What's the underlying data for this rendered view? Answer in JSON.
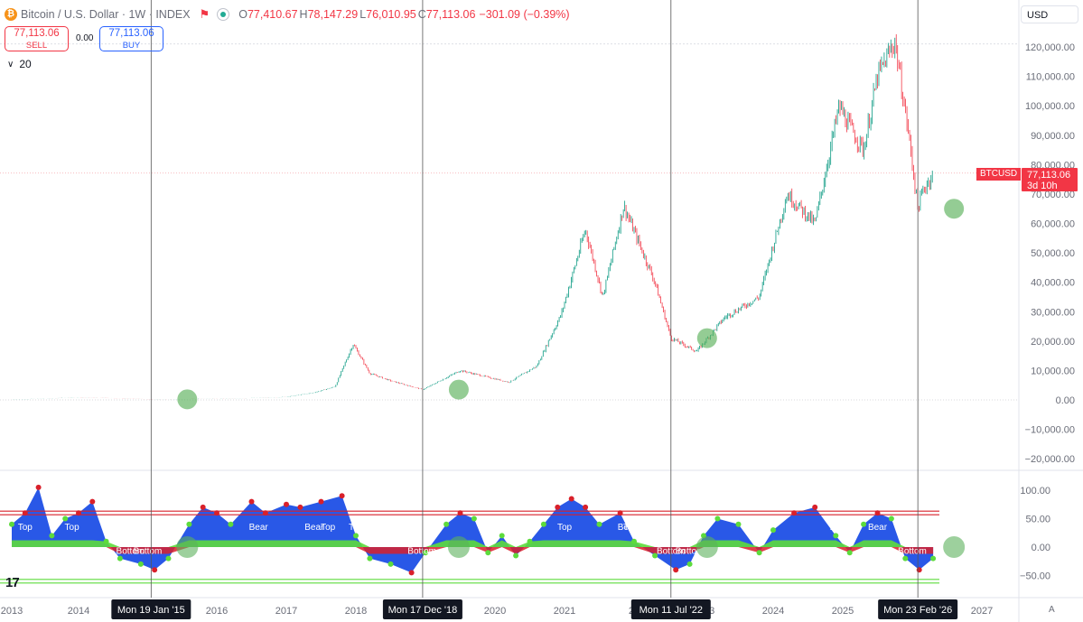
{
  "header": {
    "symbol_title": "Bitcoin / U.S. Dollar · 1W · INDEX",
    "open_key": "O",
    "open": "77,410.67",
    "high_key": "H",
    "high": "78,147.29",
    "low_key": "L",
    "low": "76,010.95",
    "close_key": "C",
    "close": "77,113.06",
    "change": "−301.09 (−0.39%)"
  },
  "trade": {
    "sell_price": "77,113.06",
    "sell_label": "SELL",
    "spread": "0.00",
    "buy_price": "77,113.06",
    "buy_label": "BUY"
  },
  "indicator_row": {
    "value": "20"
  },
  "currency": "USD",
  "last_price": {
    "symbol": "BTCUSD",
    "price": "77,113.06",
    "countdown": "3d 10h"
  },
  "colors": {
    "up": "#089981",
    "down": "#f23645",
    "osc_blue": "#1e4fe6",
    "osc_green": "#5ddb3c",
    "osc_red": "#d9202a",
    "marker": "#5bb05b"
  },
  "chart_data": [
    {
      "type": "candlestick",
      "series": [
        {
          "name": "BTCUSD",
          "x": [
            2013.0,
            2013.5,
            2014.0,
            2014.5,
            2015.05,
            2015.5,
            2016.0,
            2016.5,
            2017.0,
            2017.4,
            2017.7,
            2017.96,
            2018.2,
            2018.5,
            2018.96,
            2019.5,
            2020.2,
            2020.6,
            2020.95,
            2021.3,
            2021.55,
            2021.85,
            2022.3,
            2022.53,
            2022.9,
            2023.3,
            2023.8,
            2024.2,
            2024.6,
            2024.95,
            2025.05,
            2025.3,
            2025.5,
            2025.75,
            2025.95,
            2026.08,
            2026.15,
            2026.3
          ],
          "y": [
            100,
            500,
            800,
            600,
            200,
            280,
            430,
            650,
            1000,
            2500,
            4500,
            19000,
            9000,
            6500,
            3500,
            10000,
            6000,
            11500,
            29000,
            58000,
            35000,
            66000,
            40000,
            21000,
            16500,
            28000,
            35000,
            70000,
            60000,
            100000,
            95000,
            85000,
            110000,
            122000,
            90000,
            65000,
            71000,
            77113
          ]
        }
      ],
      "y_ticks": [
        "120,000.00",
        "110,000.00",
        "100,000.00",
        "90,000.00",
        "80,000.00",
        "70,000.00",
        "60,000.00",
        "50,000.00",
        "40,000.00",
        "30,000.00",
        "20,000.00",
        "10,000.00",
        "0.00",
        "−10,000.00",
        "−20,000.00"
      ],
      "ylim": [
        -20000,
        120000
      ],
      "markers_x": [
        2015.05,
        2018.96,
        2022.53,
        2026.08
      ]
    },
    {
      "type": "area",
      "y_ticks": [
        "100.00",
        "50.00",
        "0.00",
        "−50.00"
      ],
      "ylim": [
        -50,
        100
      ],
      "series": [
        {
          "name": "",
          "x": [
            2013.0,
            2013.2,
            2013.4,
            2013.6,
            2013.8,
            2014.0,
            2014.2,
            2014.4,
            2014.6,
            2014.9,
            2015.1,
            2015.3,
            2015.6,
            2015.8,
            2016.0,
            2016.2,
            2016.5,
            2016.7,
            2017.0,
            2017.2,
            2017.5,
            2017.8,
            2018.0,
            2018.2,
            2018.5,
            2018.8,
            2019.0,
            2019.3,
            2019.5,
            2019.7,
            2019.9,
            2020.1,
            2020.3,
            2020.5,
            2020.7,
            2020.9,
            2021.1,
            2021.3,
            2021.5,
            2021.8,
            2022.0,
            2022.3,
            2022.6,
            2022.8,
            2023.0,
            2023.2,
            2023.5,
            2023.8,
            2024.0,
            2024.3,
            2024.6,
            2024.9,
            2025.1,
            2025.3,
            2025.5,
            2025.7,
            2025.9,
            2026.1,
            2026.3
          ],
          "values": [
            40,
            60,
            105,
            20,
            50,
            60,
            80,
            10,
            -20,
            -30,
            -40,
            -20,
            40,
            70,
            60,
            40,
            80,
            60,
            75,
            70,
            80,
            90,
            20,
            -20,
            -30,
            -45,
            -10,
            40,
            60,
            50,
            -10,
            20,
            -15,
            10,
            40,
            70,
            85,
            70,
            40,
            60,
            10,
            -15,
            -40,
            -30,
            20,
            50,
            40,
            -10,
            30,
            60,
            70,
            20,
            -10,
            40,
            60,
            50,
            -20,
            -40,
            -20
          ]
        }
      ],
      "levels": [
        60,
        -60
      ],
      "label_series": [
        "Top",
        "Top",
        "Bottom",
        "Bottom",
        "Bear",
        "Bear",
        "Top",
        "Top",
        "Bottom",
        "Top",
        "Bear",
        "Top",
        "Top",
        "Bottom",
        "Bottom",
        "Bear",
        "Bear",
        "Bottom"
      ],
      "markers_x": [
        2015.05,
        2018.96,
        2022.53,
        2026.08
      ]
    }
  ],
  "x_axis": {
    "years": [
      "2013",
      "2014",
      "2016",
      "2017",
      "2018",
      "2020",
      "2021",
      "2023",
      "2024",
      "2025",
      "2027"
    ],
    "cursor_dates": [
      "Mon 19 Jan '15",
      "Mon 17 Dec '18",
      "Mon 11 Jul '22",
      "Mon 23 Feb '26"
    ],
    "partial_label": "20"
  },
  "misc": {
    "auto_label": "A"
  }
}
